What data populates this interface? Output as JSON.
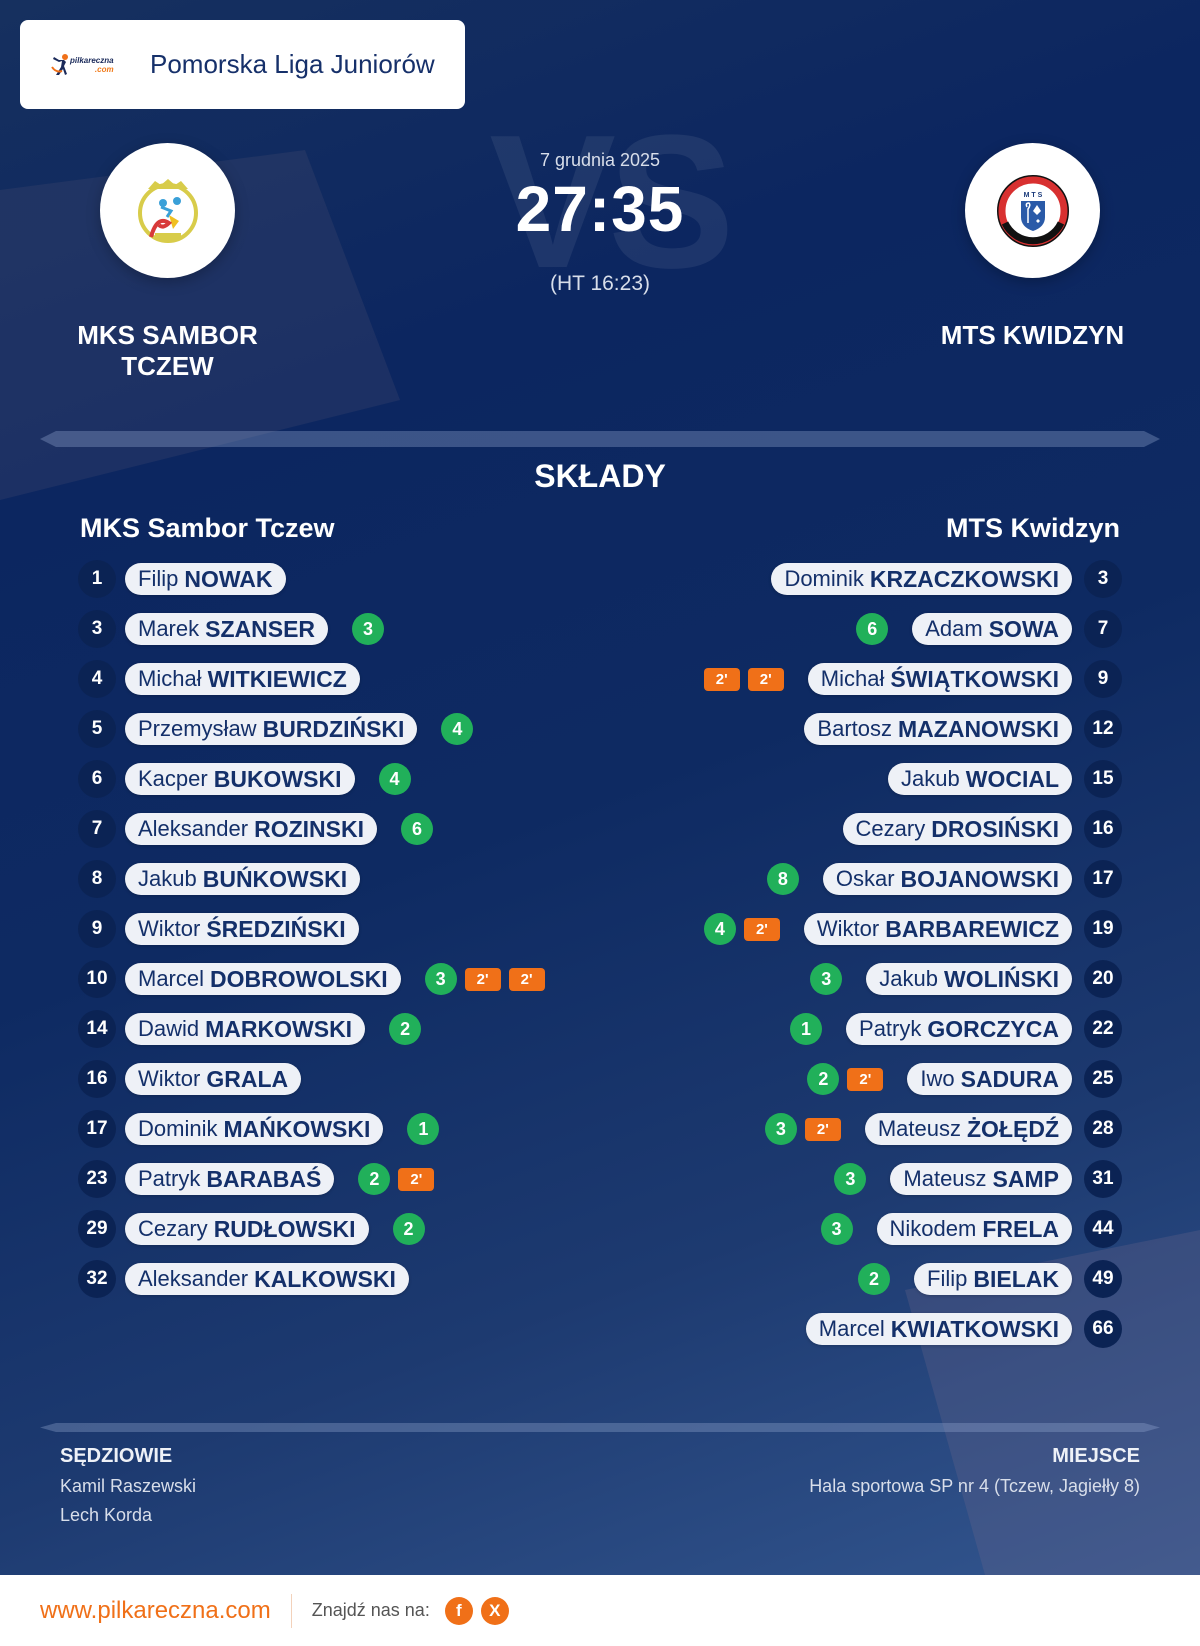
{
  "header": {
    "brand": {
      "name": "pilkareczna",
      "suffix": ".com"
    },
    "league": "Pomorska Liga Juniorów"
  },
  "match": {
    "date": "7 grudnia 2025",
    "score": "27:35",
    "halftime": "(HT 16:23)",
    "vs_watermark": "VS",
    "home": {
      "name_line1": "MKS SAMBOR",
      "name_line2": "TCZEW"
    },
    "away": {
      "name": "MTS KWIDZYN"
    }
  },
  "lineups": {
    "title": "SKŁADY",
    "home": {
      "team": "MKS Sambor Tczew",
      "players": [
        {
          "number": "1",
          "first": "Filip",
          "last": "NOWAK",
          "goals": null,
          "penalties": []
        },
        {
          "number": "3",
          "first": "Marek",
          "last": "SZANSER",
          "goals": "3",
          "penalties": []
        },
        {
          "number": "4",
          "first": "Michał",
          "last": "WITKIEWICZ",
          "goals": null,
          "penalties": []
        },
        {
          "number": "5",
          "first": "Przemysław",
          "last": "BURDZIŃSKI",
          "goals": "4",
          "penalties": []
        },
        {
          "number": "6",
          "first": "Kacper",
          "last": "BUKOWSKI",
          "goals": "4",
          "penalties": []
        },
        {
          "number": "7",
          "first": "Aleksander",
          "last": "ROZINSKI",
          "goals": "6",
          "penalties": []
        },
        {
          "number": "8",
          "first": "Jakub",
          "last": "BUŃKOWSKI",
          "goals": null,
          "penalties": []
        },
        {
          "number": "9",
          "first": "Wiktor",
          "last": "ŚREDZIŃSKI",
          "goals": null,
          "penalties": []
        },
        {
          "number": "10",
          "first": "Marcel",
          "last": "DOBROWOLSKI",
          "goals": "3",
          "penalties": [
            "2'",
            "2'"
          ]
        },
        {
          "number": "14",
          "first": "Dawid",
          "last": "MARKOWSKI",
          "goals": "2",
          "penalties": []
        },
        {
          "number": "16",
          "first": "Wiktor",
          "last": "GRALA",
          "goals": null,
          "penalties": []
        },
        {
          "number": "17",
          "first": "Dominik",
          "last": "MAŃKOWSKI",
          "goals": "1",
          "penalties": []
        },
        {
          "number": "23",
          "first": "Patryk",
          "last": "BARABAŚ",
          "goals": "2",
          "penalties": [
            "2'"
          ]
        },
        {
          "number": "29",
          "first": "Cezary",
          "last": "RUDŁOWSKI",
          "goals": "2",
          "penalties": []
        },
        {
          "number": "32",
          "first": "Aleksander",
          "last": "KALKOWSKI",
          "goals": null,
          "penalties": []
        }
      ]
    },
    "away": {
      "team": "MTS Kwidzyn",
      "players": [
        {
          "number": "3",
          "first": "Dominik",
          "last": "KRZACZKOWSKI",
          "goals": null,
          "penalties": []
        },
        {
          "number": "7",
          "first": "Adam",
          "last": "SOWA",
          "goals": "6",
          "penalties": []
        },
        {
          "number": "9",
          "first": "Michał",
          "last": "ŚWIĄTKOWSKI",
          "goals": null,
          "penalties": [
            "2'",
            "2'"
          ]
        },
        {
          "number": "12",
          "first": "Bartosz",
          "last": "MAZANOWSKI",
          "goals": null,
          "penalties": []
        },
        {
          "number": "15",
          "first": "Jakub",
          "last": "WOCIAL",
          "goals": null,
          "penalties": []
        },
        {
          "number": "16",
          "first": "Cezary",
          "last": "DROSIŃSKI",
          "goals": null,
          "penalties": []
        },
        {
          "number": "17",
          "first": "Oskar",
          "last": "BOJANOWSKI",
          "goals": "8",
          "penalties": []
        },
        {
          "number": "19",
          "first": "Wiktor",
          "last": "BARBAREWICZ",
          "goals": "4",
          "penalties": [
            "2'"
          ]
        },
        {
          "number": "20",
          "first": "Jakub",
          "last": "WOLIŃSKI",
          "goals": "3",
          "penalties": []
        },
        {
          "number": "22",
          "first": "Patryk",
          "last": "GORCZYCA",
          "goals": "1",
          "penalties": []
        },
        {
          "number": "25",
          "first": "Iwo",
          "last": "SADURA",
          "goals": "2",
          "penalties": [
            "2'"
          ]
        },
        {
          "number": "28",
          "first": "Mateusz",
          "last": "ŻOŁĘDŹ",
          "goals": "3",
          "penalties": [
            "2'"
          ]
        },
        {
          "number": "31",
          "first": "Mateusz",
          "last": "SAMP",
          "goals": "3",
          "penalties": []
        },
        {
          "number": "44",
          "first": "Nikodem",
          "last": "FRELA",
          "goals": "3",
          "penalties": []
        },
        {
          "number": "49",
          "first": "Filip",
          "last": "BIELAK",
          "goals": "2",
          "penalties": []
        },
        {
          "number": "66",
          "first": "Marcel",
          "last": "KWIATKOWSKI",
          "goals": null,
          "penalties": []
        }
      ]
    }
  },
  "info": {
    "referees_label": "SĘDZIOWIE",
    "referees": [
      "Kamil Raszewski",
      "Lech Korda"
    ],
    "venue_label": "MIEJSCE",
    "venue": "Hala sportowa SP nr 4 (Tczew, Jagiełły 8)"
  },
  "footer": {
    "site": "www.pilkareczna.com",
    "find_us": "Znajdź nas na:",
    "social": [
      {
        "icon": "facebook-icon",
        "glyph": "f"
      },
      {
        "icon": "x-icon",
        "glyph": "X"
      }
    ]
  },
  "colors": {
    "background": "#0c2660",
    "pill": "#eef1f7",
    "pill_text": "#14306a",
    "number_badge": "#0b2354",
    "goal": "#21b05a",
    "penalty": "#f07018",
    "brand_orange": "#f07018"
  }
}
